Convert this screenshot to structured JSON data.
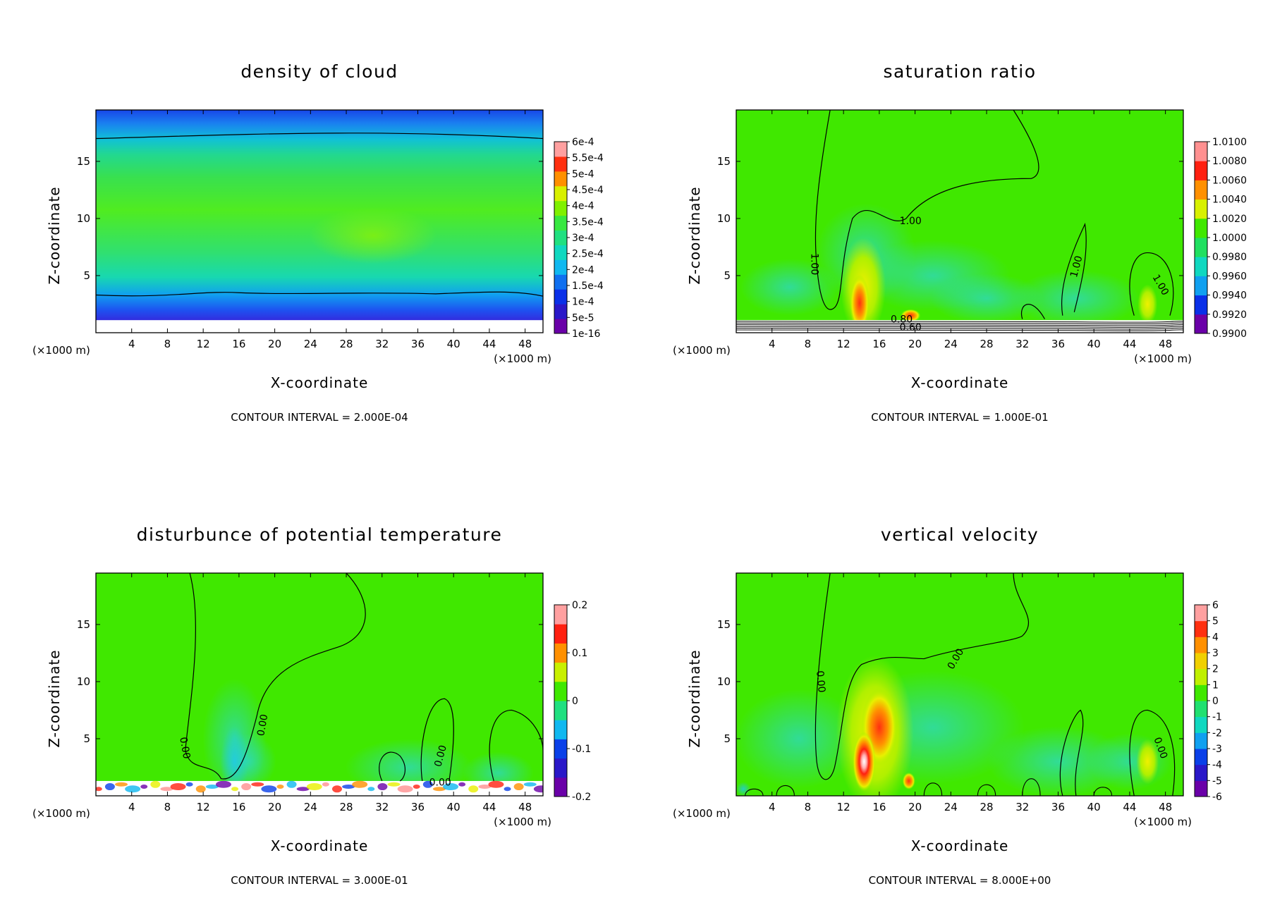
{
  "chart_data": [
    {
      "type": "heatmap",
      "title": "density of cloud",
      "xlabel": "X-coordinate",
      "ylabel": "Z-coordinate",
      "x_unit": "(×1000 m)",
      "y_unit": "(×1000 m)",
      "x_ticks": [
        "4",
        "8",
        "12",
        "16",
        "20",
        "24",
        "28",
        "32",
        "36",
        "40",
        "44",
        "48"
      ],
      "y_ticks": [
        "5",
        "10",
        "15"
      ],
      "xlim": [
        0,
        50
      ],
      "ylim": [
        0,
        19.5
      ],
      "colorbar": [
        "1e-16",
        "5e-5",
        "1e-4",
        "1.5e-4",
        "2e-4",
        "2.5e-4",
        "3e-4",
        "3.5e-4",
        "4e-4",
        "4.5e-4",
        "5e-4",
        "5.5e-4",
        "6e-4"
      ],
      "contour_labels": [],
      "interval_text": "CONTOUR INTERVAL = 2.000E-04"
    },
    {
      "type": "heatmap",
      "title": "saturation ratio",
      "xlabel": "X-coordinate",
      "ylabel": "Z-coordinate",
      "x_unit": "(×1000 m)",
      "y_unit": "(×1000 m)",
      "x_ticks": [
        "4",
        "8",
        "12",
        "16",
        "20",
        "24",
        "28",
        "32",
        "36",
        "40",
        "44",
        "48"
      ],
      "y_ticks": [
        "5",
        "10",
        "15"
      ],
      "xlim": [
        0,
        50
      ],
      "ylim": [
        0,
        19.5
      ],
      "colorbar": [
        "0.9900",
        "0.9920",
        "0.9940",
        "0.9960",
        "0.9980",
        "1.0000",
        "1.0020",
        "1.0040",
        "1.0060",
        "1.0080",
        "1.0100"
      ],
      "contour_labels": [
        {
          "text": "1.00",
          "x": 19.5,
          "z": 9.8,
          "rot": 0
        },
        {
          "text": "1.00",
          "x": 8.8,
          "z": 6.0,
          "rot": 90
        },
        {
          "text": "1.00",
          "x": 38.0,
          "z": 5.8,
          "rot": -75
        },
        {
          "text": "1.00",
          "x": 47.5,
          "z": 4.2,
          "rot": 60
        },
        {
          "text": "0.80",
          "x": 18.5,
          "z": 1.2,
          "rot": 0
        },
        {
          "text": "0.60",
          "x": 19.5,
          "z": 0.5,
          "rot": 0
        }
      ],
      "interval_text": "CONTOUR INTERVAL = 1.000E-01"
    },
    {
      "type": "heatmap",
      "title": "disturbunce of potential temperature",
      "xlabel": "X-coordinate",
      "ylabel": "Z-coordinate",
      "x_unit": "(×1000 m)",
      "y_unit": "(×1000 m)",
      "x_ticks": [
        "4",
        "8",
        "12",
        "16",
        "20",
        "24",
        "28",
        "32",
        "36",
        "40",
        "44",
        "48"
      ],
      "y_ticks": [
        "5",
        "10",
        "15"
      ],
      "xlim": [
        0,
        50
      ],
      "ylim": [
        0,
        19.5
      ],
      "colorbar": [
        "-0.2",
        "-0.1",
        "0",
        "0.1",
        "0.2"
      ],
      "contour_labels": [
        {
          "text": "0.00",
          "x": 10.0,
          "z": 4.2,
          "rot": 80
        },
        {
          "text": "0.00",
          "x": 18.6,
          "z": 6.2,
          "rot": -80
        },
        {
          "text": "0.00",
          "x": 38.5,
          "z": 3.5,
          "rot": -75
        },
        {
          "text": "0.00",
          "x": 38.5,
          "z": 1.2,
          "rot": 0
        }
      ],
      "interval_text": "CONTOUR INTERVAL = 3.000E-01"
    },
    {
      "type": "heatmap",
      "title": "vertical velocity",
      "xlabel": "X-coordinate",
      "ylabel": "Z-coordinate",
      "x_unit": "(×1000 m)",
      "y_unit": "(×1000 m)",
      "x_ticks": [
        "4",
        "8",
        "12",
        "16",
        "20",
        "24",
        "28",
        "32",
        "36",
        "40",
        "44",
        "48"
      ],
      "y_ticks": [
        "5",
        "10",
        "15"
      ],
      "xlim": [
        0,
        50
      ],
      "ylim": [
        0,
        19.5
      ],
      "colorbar": [
        "-6",
        "-5",
        "-4",
        "-3",
        "-2",
        "-1",
        "0",
        "1",
        "2",
        "3",
        "4",
        "5",
        "6"
      ],
      "contour_labels": [
        {
          "text": "0.00",
          "x": 9.5,
          "z": 10.0,
          "rot": 85
        },
        {
          "text": "0.00",
          "x": 24.5,
          "z": 12.0,
          "rot": -60
        },
        {
          "text": "0.00",
          "x": 47.5,
          "z": 4.2,
          "rot": 70
        }
      ],
      "interval_text": "CONTOUR INTERVAL = 8.000E+00"
    }
  ]
}
